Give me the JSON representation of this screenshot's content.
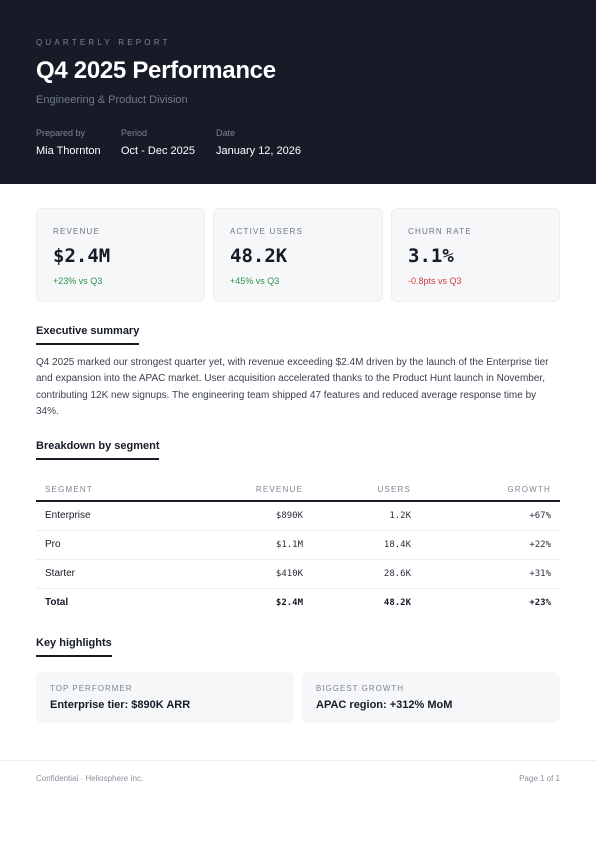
{
  "header": {
    "eyebrow": "QUARTERLY REPORT",
    "title": "Q4 2025 Performance",
    "subtitle": "Engineering & Product Division",
    "meta": [
      {
        "label": "Prepared by",
        "value": "Mia Thornton"
      },
      {
        "label": "Period",
        "value": "Oct - Dec 2025"
      },
      {
        "label": "Date",
        "value": "January 12, 2026"
      }
    ]
  },
  "kpis": [
    {
      "label": "REVENUE",
      "value": "$2.4M",
      "change": "+23% vs Q3",
      "trend": "positive"
    },
    {
      "label": "ACTIVE USERS",
      "value": "48.2K",
      "change": "+45% vs Q3",
      "trend": "positive"
    },
    {
      "label": "CHURN RATE",
      "value": "3.1%",
      "change": "-0.8pts vs Q3",
      "trend": "negative"
    }
  ],
  "summary": {
    "title": "Executive summary",
    "text": "Q4 2025 marked our strongest quarter yet, with revenue exceeding $2.4M driven by the launch of the Enterprise tier and expansion into the APAC market. User acquisition accelerated thanks to the Product Hunt launch in November, contributing 12K new signups. The engineering team shipped 47 features and reduced average response time by 34%."
  },
  "breakdown": {
    "title": "Breakdown by segment",
    "columns": [
      "SEGMENT",
      "REVENUE",
      "USERS",
      "GROWTH"
    ],
    "rows": [
      [
        "Enterprise",
        "$890K",
        "1.2K",
        "+67%"
      ],
      [
        "Pro",
        "$1.1M",
        "18.4K",
        "+22%"
      ],
      [
        "Starter",
        "$410K",
        "28.6K",
        "+31%"
      ]
    ],
    "total": [
      "Total",
      "$2.4M",
      "48.2K",
      "+23%"
    ]
  },
  "highlights": {
    "title": "Key highlights",
    "items": [
      {
        "label": "TOP PERFORMER",
        "value": "Enterprise tier: $890K ARR"
      },
      {
        "label": "BIGGEST GROWTH",
        "value": "APAC region: +312% MoM"
      }
    ]
  },
  "footer": {
    "left": "Confidential · Heliosphere Inc.",
    "right": "Page 1 of 1"
  },
  "colors": {
    "header_bg": "#161b27",
    "positive": "#2f8f4e",
    "negative": "#d23c3c"
  }
}
